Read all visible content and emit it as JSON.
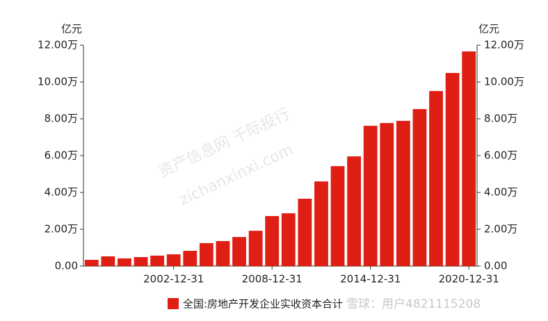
{
  "chart_data": {
    "type": "bar",
    "y_unit": "亿元",
    "y2_unit": "亿元",
    "categories": [
      null,
      null,
      null,
      null,
      null,
      "2002-12-31",
      null,
      null,
      null,
      null,
      null,
      "2008-12-31",
      null,
      null,
      null,
      null,
      null,
      "2014-12-31",
      null,
      null,
      null,
      null,
      null,
      "2020-12-31"
    ],
    "series": [
      {
        "name": "全国:房地产开发企业实收资本合计",
        "color": "#df1f14",
        "values": [
          3400,
          5300,
          4200,
          4900,
          5700,
          6400,
          8300,
          12500,
          13600,
          15800,
          19200,
          27200,
          28700,
          36600,
          46000,
          54300,
          59600,
          76200,
          77700,
          78900,
          85300,
          95100,
          104900,
          116600
        ]
      }
    ],
    "ylim": [
      0,
      120000
    ],
    "yticks": [
      {
        "value": 0,
        "label": "0.00"
      },
      {
        "value": 20000,
        "label": "2.00万"
      },
      {
        "value": 40000,
        "label": "4.00万"
      },
      {
        "value": 60000,
        "label": "6.00万"
      },
      {
        "value": 80000,
        "label": "8.00万"
      },
      {
        "value": 100000,
        "label": "10.00万"
      },
      {
        "value": 120000,
        "label": "12.00万"
      }
    ],
    "y2lim": [
      0,
      120000
    ],
    "y2ticks": [
      {
        "value": 0,
        "label": "0.00"
      },
      {
        "value": 20000,
        "label": "2.00万"
      },
      {
        "value": 40000,
        "label": "4.00万"
      },
      {
        "value": 60000,
        "label": "6.00万"
      },
      {
        "value": 80000,
        "label": "8.00万"
      },
      {
        "value": 100000,
        "label": "10.00万"
      },
      {
        "value": 120000,
        "label": "12.00万"
      }
    ],
    "grid": false,
    "legend": "bottom",
    "watermarks": [
      "资产信息网 千际投行",
      "zichanxinxi.com"
    ],
    "credit": "雪球：用户4821115208"
  }
}
